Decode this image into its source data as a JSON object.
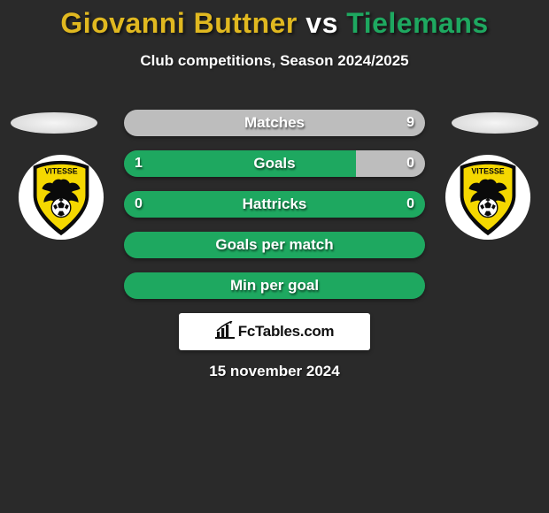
{
  "title": {
    "player1": "Giovanni Buttner",
    "vs": " vs ",
    "player2": "Tielemans",
    "player1_color": "#e0b820",
    "vs_color": "#ffffff",
    "player2_color": "#1ea860"
  },
  "subtitle": "Club competitions, Season 2024/2025",
  "background_color": "#2a2a2a",
  "accent_green": "#1ea860",
  "accent_grey": "#bdbdbd",
  "club": {
    "name": "VITESSE",
    "shield_outer": "#ffffff",
    "shield_yellow": "#f5d800",
    "shield_black": "#0a0a0a"
  },
  "rows": [
    {
      "label": "Matches",
      "left": "",
      "right": "9",
      "left_pct": 0,
      "right_pct": 100
    },
    {
      "label": "Goals",
      "left": "1",
      "right": "0",
      "left_pct": 77,
      "right_pct": 23
    },
    {
      "label": "Hattricks",
      "left": "0",
      "right": "0",
      "left_pct": 100,
      "right_pct": 0
    },
    {
      "label": "Goals per match",
      "left": "",
      "right": "",
      "left_pct": 100,
      "right_pct": 0
    },
    {
      "label": "Min per goal",
      "left": "",
      "right": "",
      "left_pct": 100,
      "right_pct": 0
    }
  ],
  "brand": "FcTables.com",
  "date": "15 november 2024"
}
